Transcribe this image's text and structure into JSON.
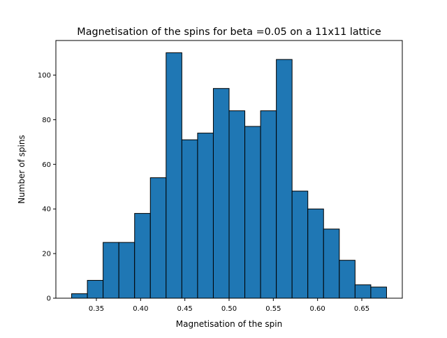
{
  "chart_data": {
    "type": "bar",
    "title": "Magnetisation of the spins for beta =0.05 on a 11x11 lattice",
    "xlabel": "Magnetisation of the spin",
    "ylabel": "Number of spins",
    "bin_edges": [
      0.322,
      0.3398,
      0.3576,
      0.3754,
      0.3932,
      0.411,
      0.4288,
      0.4466,
      0.4644,
      0.4822,
      0.5,
      0.5178,
      0.5356,
      0.5534,
      0.5712,
      0.589,
      0.6068,
      0.6246,
      0.6424,
      0.6602,
      0.678
    ],
    "values": [
      2,
      8,
      25,
      25,
      38,
      54,
      110,
      71,
      74,
      94,
      84,
      77,
      84,
      107,
      48,
      40,
      31,
      17,
      6,
      5
    ],
    "xlim": [
      0.3042,
      0.6958
    ],
    "ylim": [
      0,
      115.5
    ],
    "xticks": [
      0.35,
      0.4,
      0.45,
      0.5,
      0.55,
      0.6,
      0.65
    ],
    "xtick_labels": [
      "0.35",
      "0.40",
      "0.45",
      "0.50",
      "0.55",
      "0.60",
      "0.65"
    ],
    "yticks": [
      0,
      20,
      40,
      60,
      80,
      100
    ],
    "ytick_labels": [
      "0",
      "20",
      "40",
      "60",
      "80",
      "100"
    ],
    "bar_color": "#1f77b4",
    "edge_color": "#000000",
    "grid": false,
    "legend": "none"
  }
}
